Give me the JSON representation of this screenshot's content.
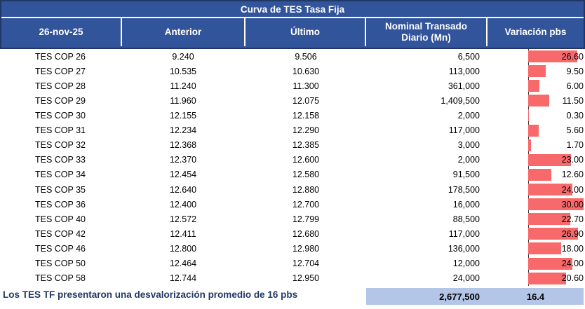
{
  "title": "Curva de TES Tasa Fija",
  "columns": {
    "date": "26-nov-25",
    "anterior": "Anterior",
    "ultimo": "Último",
    "nominal_line1": "Nominal Transado",
    "nominal_line2": "Diario (Mn)",
    "variacion": "Variación pbs"
  },
  "rows": [
    {
      "name": "TES COP 26",
      "anterior": "9.240",
      "ultimo": "9.506",
      "nominal": "6,500",
      "variacion": "26.60",
      "variacion_value": 26.6
    },
    {
      "name": "TES COP 27",
      "anterior": "10.535",
      "ultimo": "10.630",
      "nominal": "113,000",
      "variacion": "9.50",
      "variacion_value": 9.5
    },
    {
      "name": "TES COP 28",
      "anterior": "11.240",
      "ultimo": "11.300",
      "nominal": "361,000",
      "variacion": "6.00",
      "variacion_value": 6.0
    },
    {
      "name": "TES COP 29",
      "anterior": "11.960",
      "ultimo": "12.075",
      "nominal": "1,409,500",
      "variacion": "11.50",
      "variacion_value": 11.5
    },
    {
      "name": "TES COP 30",
      "anterior": "12.155",
      "ultimo": "12.158",
      "nominal": "2,000",
      "variacion": "0.30",
      "variacion_value": 0.3
    },
    {
      "name": "TES COP 31",
      "anterior": "12.234",
      "ultimo": "12.290",
      "nominal": "117,000",
      "variacion": "5.60",
      "variacion_value": 5.6
    },
    {
      "name": "TES COP 32",
      "anterior": "12.368",
      "ultimo": "12.385",
      "nominal": "3,000",
      "variacion": "1.70",
      "variacion_value": 1.7
    },
    {
      "name": "TES COP 33",
      "anterior": "12.370",
      "ultimo": "12.600",
      "nominal": "2,000",
      "variacion": "23.00",
      "variacion_value": 23.0
    },
    {
      "name": "TES COP 34",
      "anterior": "12.454",
      "ultimo": "12.580",
      "nominal": "91,500",
      "variacion": "12.60",
      "variacion_value": 12.6
    },
    {
      "name": "TES COP 35",
      "anterior": "12.640",
      "ultimo": "12.880",
      "nominal": "178,500",
      "variacion": "24.00",
      "variacion_value": 24.0
    },
    {
      "name": "TES COP 36",
      "anterior": "12.400",
      "ultimo": "12.700",
      "nominal": "16,000",
      "variacion": "30.00",
      "variacion_value": 30.0
    },
    {
      "name": "TES COP 40",
      "anterior": "12.572",
      "ultimo": "12.799",
      "nominal": "88,500",
      "variacion": "22.70",
      "variacion_value": 22.7
    },
    {
      "name": "TES COP 42",
      "anterior": "12.411",
      "ultimo": "12.680",
      "nominal": "117,000",
      "variacion": "26.90",
      "variacion_value": 26.9
    },
    {
      "name": "TES COP 46",
      "anterior": "12.800",
      "ultimo": "12.980",
      "nominal": "136,000",
      "variacion": "18.00",
      "variacion_value": 18.0
    },
    {
      "name": "TES COP 50",
      "anterior": "12.464",
      "ultimo": "12.704",
      "nominal": "12,000",
      "variacion": "24.00",
      "variacion_value": 24.0
    },
    {
      "name": "TES COP 58",
      "anterior": "12.744",
      "ultimo": "12.950",
      "nominal": "24,000",
      "variacion": "20.60",
      "variacion_value": 20.6
    }
  ],
  "footer": {
    "note": "Los TES TF presentaron una desvalorización promedio de 16 pbs",
    "total_nominal": "2,677,500",
    "avg_variacion": "16.4"
  },
  "colors": {
    "header_blue": "#31549B",
    "border_navy": "#1F3864",
    "bar_red": "#F8696B",
    "totals_band_blue": "#B4C6E7",
    "note_text": "#1F3864"
  },
  "bar_axis_max": 30,
  "chart_data": {
    "type": "table",
    "title": "Curva de TES Tasa Fija",
    "columns": [
      "26-nov-25",
      "Anterior",
      "Último",
      "Nominal Transado Diario (Mn)",
      "Variación pbs"
    ],
    "rows": [
      [
        "TES COP 26",
        9.24,
        9.506,
        6500,
        26.6
      ],
      [
        "TES COP 27",
        10.535,
        10.63,
        113000,
        9.5
      ],
      [
        "TES COP 28",
        11.24,
        11.3,
        361000,
        6.0
      ],
      [
        "TES COP 29",
        11.96,
        12.075,
        1409500,
        11.5
      ],
      [
        "TES COP 30",
        12.155,
        12.158,
        2000,
        0.3
      ],
      [
        "TES COP 31",
        12.234,
        12.29,
        117000,
        5.6
      ],
      [
        "TES COP 32",
        12.368,
        12.385,
        3000,
        1.7
      ],
      [
        "TES COP 33",
        12.37,
        12.6,
        2000,
        23.0
      ],
      [
        "TES COP 34",
        12.454,
        12.58,
        91500,
        12.6
      ],
      [
        "TES COP 35",
        12.64,
        12.88,
        178500,
        24.0
      ],
      [
        "TES COP 36",
        12.4,
        12.7,
        16000,
        30.0
      ],
      [
        "TES COP 40",
        12.572,
        12.799,
        88500,
        22.7
      ],
      [
        "TES COP 42",
        12.411,
        12.68,
        117000,
        26.9
      ],
      [
        "TES COP 46",
        12.8,
        12.98,
        136000,
        18.0
      ],
      [
        "TES COP 50",
        12.464,
        12.704,
        12000,
        24.0
      ],
      [
        "TES COP 58",
        12.744,
        12.95,
        24000,
        20.6
      ]
    ],
    "totals": {
      "nominal_transado_total": 2677500,
      "variacion_promedio_pbs": 16.4
    },
    "embedded_bar": {
      "column": "Variación pbs",
      "type": "bar",
      "color": "#F8696B",
      "axis_max": 30,
      "orientation": "horizontal"
    }
  }
}
